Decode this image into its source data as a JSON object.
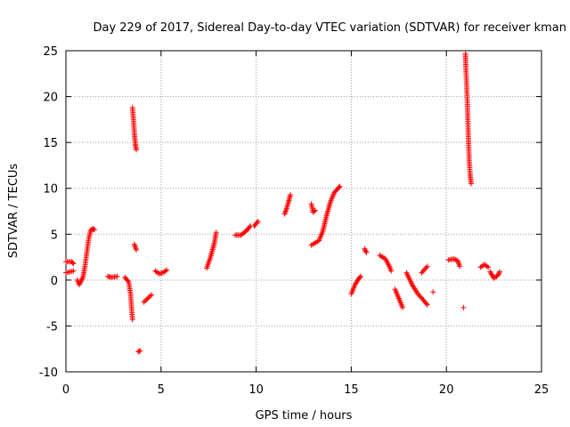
{
  "chart_data": {
    "type": "scatter",
    "title": "Day 229 of 2017, Sidereal Day-to-day VTEC variation (SDTVAR) for receiver kman",
    "xlabel": "GPS time / hours",
    "ylabel": "SDTVAR / TECUs",
    "xlim": [
      0,
      25
    ],
    "ylim": [
      -10,
      25
    ],
    "xticks": [
      "0",
      "5",
      "10",
      "15",
      "20",
      "25"
    ],
    "yticks": [
      "-10",
      "-5",
      "0",
      "5",
      "10",
      "15",
      "20",
      "25"
    ],
    "grid": true,
    "marker": "plus",
    "color": "#ff0000",
    "series": [
      {
        "name": "SDTVAR",
        "segments": [
          [
            [
              0.0,
              2.0
            ],
            [
              0.3,
              2.0
            ],
            [
              0.4,
              1.8
            ]
          ],
          [
            [
              0.0,
              0.8
            ],
            [
              0.4,
              1.0
            ]
          ],
          [
            [
              0.6,
              0.0
            ],
            [
              0.7,
              -0.5
            ],
            [
              0.9,
              0.3
            ],
            [
              1.0,
              1.5
            ],
            [
              1.1,
              3.0
            ],
            [
              1.2,
              4.5
            ],
            [
              1.3,
              5.4
            ],
            [
              1.4,
              5.6
            ],
            [
              1.5,
              5.5
            ]
          ],
          [
            [
              2.2,
              0.4
            ],
            [
              2.4,
              0.3
            ],
            [
              2.7,
              0.4
            ]
          ],
          [
            [
              3.1,
              0.3
            ],
            [
              3.3,
              -0.2
            ],
            [
              3.4,
              -1.5
            ],
            [
              3.45,
              -3.0
            ],
            [
              3.5,
              -4.3
            ]
          ],
          [
            [
              3.5,
              18.8
            ],
            [
              3.55,
              17.5
            ],
            [
              3.6,
              16.0
            ],
            [
              3.65,
              14.8
            ],
            [
              3.7,
              14.2
            ]
          ],
          [
            [
              3.6,
              3.9
            ],
            [
              3.7,
              3.3
            ]
          ],
          [
            [
              3.8,
              -7.8
            ],
            [
              3.9,
              -7.7
            ]
          ],
          [
            [
              4.1,
              -2.4
            ],
            [
              4.3,
              -2.0
            ],
            [
              4.5,
              -1.6
            ]
          ],
          [
            [
              4.7,
              1.0
            ],
            [
              4.9,
              0.7
            ],
            [
              5.1,
              0.8
            ],
            [
              5.3,
              1.1
            ]
          ],
          [
            [
              7.4,
              1.3
            ],
            [
              7.6,
              2.5
            ],
            [
              7.8,
              4.0
            ],
            [
              7.9,
              5.2
            ]
          ],
          [
            [
              8.9,
              4.9
            ],
            [
              9.2,
              4.9
            ],
            [
              9.5,
              5.4
            ],
            [
              9.7,
              5.9
            ]
          ],
          [
            [
              9.9,
              5.9
            ],
            [
              10.1,
              6.4
            ]
          ],
          [
            [
              11.5,
              7.2
            ],
            [
              11.6,
              7.8
            ],
            [
              11.7,
              8.5
            ],
            [
              11.8,
              9.3
            ]
          ],
          [
            [
              12.9,
              3.8
            ],
            [
              13.3,
              4.3
            ],
            [
              13.5,
              5.3
            ],
            [
              13.7,
              7.0
            ],
            [
              13.9,
              8.5
            ],
            [
              14.1,
              9.5
            ],
            [
              14.3,
              10.0
            ],
            [
              14.4,
              10.2
            ]
          ],
          [
            [
              12.9,
              8.3
            ],
            [
              13.0,
              7.4
            ],
            [
              13.1,
              7.6
            ]
          ],
          [
            [
              15.0,
              -1.5
            ],
            [
              15.2,
              -0.5
            ],
            [
              15.4,
              0.2
            ],
            [
              15.5,
              0.4
            ]
          ],
          [
            [
              15.7,
              3.4
            ],
            [
              15.8,
              3.0
            ]
          ],
          [
            [
              16.5,
              2.7
            ],
            [
              16.8,
              2.3
            ],
            [
              17.0,
              1.5
            ],
            [
              17.1,
              1.0
            ]
          ],
          [
            [
              17.3,
              -1.0
            ],
            [
              17.5,
              -2.0
            ],
            [
              17.7,
              -3.0
            ]
          ],
          [
            [
              17.9,
              0.8
            ],
            [
              18.2,
              -0.5
            ],
            [
              18.5,
              -1.5
            ],
            [
              18.8,
              -2.2
            ],
            [
              19.0,
              -2.7
            ]
          ],
          [
            [
              18.7,
              0.8
            ],
            [
              19.0,
              1.5
            ]
          ],
          [
            [
              19.3,
              -1.3
            ]
          ],
          [
            [
              20.1,
              2.2
            ],
            [
              20.4,
              2.3
            ],
            [
              20.6,
              2.1
            ],
            [
              20.7,
              1.5
            ]
          ],
          [
            [
              20.9,
              -3.0
            ]
          ],
          [
            [
              21.0,
              24.7
            ],
            [
              21.02,
              23.5
            ],
            [
              21.05,
              22.0
            ],
            [
              21.1,
              19.5
            ],
            [
              21.15,
              16.0
            ],
            [
              21.2,
              13.0
            ],
            [
              21.25,
              11.5
            ],
            [
              21.3,
              10.5
            ]
          ],
          [
            [
              21.8,
              1.4
            ],
            [
              22.0,
              1.7
            ],
            [
              22.2,
              1.4
            ]
          ],
          [
            [
              22.3,
              0.9
            ],
            [
              22.5,
              0.2
            ],
            [
              22.7,
              0.5
            ],
            [
              22.8,
              0.9
            ]
          ]
        ]
      }
    ]
  }
}
